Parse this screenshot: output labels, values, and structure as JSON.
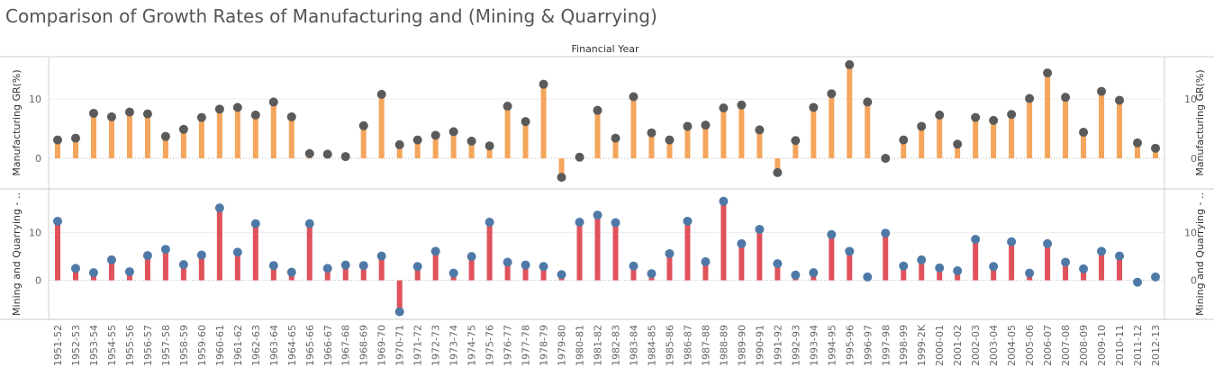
{
  "title": "Comparison of Growth Rates of Manufacturing and (Mining & Quarrying)",
  "colors": {
    "manufacturing_bar": "#F5A55C",
    "manufacturing_dot": "#5A5A5A",
    "mining_bar": "#E0525A",
    "mining_dot": "#4E79A7"
  },
  "chart_data": {
    "type": "bar",
    "header": "Financial Year",
    "categories": [
      "1951-52",
      "1952-53",
      "1953-54",
      "1954-55",
      "1955-56",
      "1956-57",
      "1957-58",
      "1958-59",
      "1959-60",
      "1960-61",
      "1961-62",
      "1962-63",
      "1963-64",
      "1964-65",
      "1965-66",
      "1966-67",
      "1967-68",
      "1968-69",
      "1969-70",
      "1970-71",
      "1971-72",
      "1972-73",
      "1973-74",
      "1974-75",
      "1975-76",
      "1976-77",
      "1977-78",
      "1978-79",
      "1979-80",
      "1980-81",
      "1981-82",
      "1982-83",
      "1983-84",
      "1984-85",
      "1985-86",
      "1986-87",
      "1987-88",
      "1988-89",
      "1989-90",
      "1990-91",
      "1991-92",
      "1992-93",
      "1993-94",
      "1994-95",
      "1995-96",
      "1996-97",
      "1997-98",
      "1998-99",
      "1999-2K",
      "2000-01",
      "2001-02",
      "2002-03",
      "2003-04",
      "2004-05",
      "2005-06",
      "2006-07",
      "2007-08",
      "2008-09",
      "2009-10",
      "2010-11",
      "2011-12",
      "2012-13"
    ],
    "panels": [
      {
        "ylabel": "Manufacturing GR(%)",
        "ylim": [
          -5,
          17
        ],
        "yticks": [
          "0",
          "10"
        ],
        "values": [
          3.1,
          3.4,
          7.6,
          7.0,
          7.8,
          7.5,
          3.7,
          4.9,
          6.9,
          8.3,
          8.6,
          7.3,
          9.5,
          7.0,
          0.8,
          0.7,
          0.3,
          5.5,
          10.8,
          2.3,
          3.1,
          3.9,
          4.5,
          2.9,
          2.1,
          8.8,
          6.2,
          12.5,
          -3.2,
          0.2,
          8.1,
          3.4,
          10.4,
          4.3,
          3.1,
          5.4,
          5.6,
          8.5,
          9.0,
          4.8,
          -2.4,
          3.0,
          8.6,
          10.9,
          15.8,
          9.5,
          0.0,
          3.1,
          5.4,
          7.3,
          2.4,
          6.9,
          6.4,
          7.4,
          10.1,
          14.4,
          10.3,
          4.4,
          11.3,
          9.8,
          2.6,
          1.7
        ]
      },
      {
        "ylabel": "Mining and Quarrying - ..",
        "ylim": [
          -8,
          19
        ],
        "yticks": [
          "0",
          "10"
        ],
        "values": [
          12.4,
          2.5,
          1.6,
          4.3,
          1.8,
          5.2,
          6.5,
          3.3,
          5.3,
          15.2,
          5.9,
          11.9,
          3.1,
          1.7,
          11.9,
          2.5,
          3.2,
          3.1,
          5.1,
          -6.6,
          2.9,
          6.1,
          1.5,
          5.0,
          12.2,
          3.8,
          3.2,
          2.9,
          1.2,
          12.2,
          13.7,
          12.1,
          3.0,
          1.4,
          5.6,
          12.4,
          3.9,
          16.6,
          7.7,
          10.7,
          3.5,
          1.1,
          1.6,
          9.6,
          6.1,
          0.7,
          9.9,
          3.0,
          4.3,
          2.6,
          2.0,
          8.6,
          2.9,
          8.1,
          1.5,
          7.7,
          3.8,
          2.4,
          6.1,
          5.1,
          -0.4,
          0.7
        ]
      }
    ]
  }
}
